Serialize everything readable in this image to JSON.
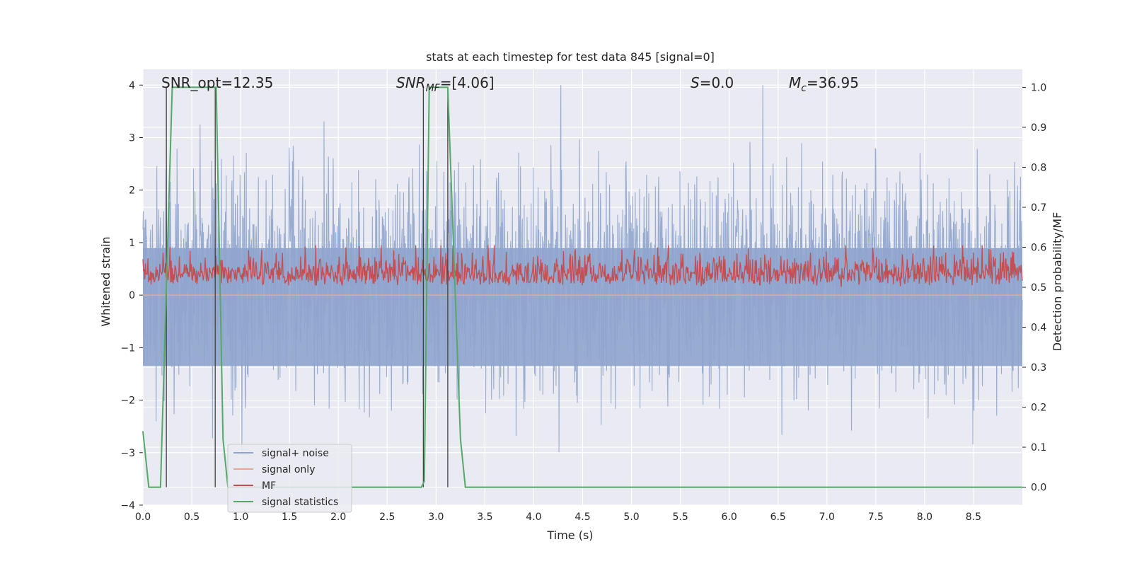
{
  "chart_data": {
    "type": "line",
    "title": "stats at each timestep for test data 845 [signal=0]",
    "xlabel": "Time (s)",
    "ylabel": "Whitened strain",
    "y2label": "Detection probability/MF",
    "xlim": [
      0.0,
      9.0
    ],
    "ylim": [
      -4.0,
      4.3
    ],
    "y2lim": [
      -0.045,
      1.045
    ],
    "x_ticks": [
      "0.0",
      "0.5",
      "1.0",
      "1.5",
      "2.0",
      "2.5",
      "3.0",
      "3.5",
      "4.0",
      "4.5",
      "5.0",
      "5.5",
      "6.0",
      "6.5",
      "7.0",
      "7.5",
      "8.0",
      "8.5"
    ],
    "y_ticks": [
      "4",
      "3",
      "2",
      "1",
      "0",
      "−1",
      "−2",
      "−3",
      "−4"
    ],
    "y2_ticks": [
      "1.0",
      "0.9",
      "0.8",
      "0.7",
      "0.6",
      "0.5",
      "0.4",
      "0.3",
      "0.2",
      "0.1",
      "0.0"
    ],
    "grid": true,
    "legend_position": "lower-left",
    "annotations": {
      "snr_opt": "SNR_opt=12.35",
      "snr_mf": "SNR",
      "snr_mf_sub": "MF",
      "snr_mf_val": "=[4.06]",
      "s_name": "S",
      "s_val": "=0.0",
      "mc_name": "M",
      "mc_sub": "c",
      "mc_val": "=36.95"
    },
    "series": [
      {
        "name": "signal+ noise",
        "color": "#8fa5cd",
        "description": "whitened strain noise",
        "amplitude_range": [
          -3.8,
          4.0
        ]
      },
      {
        "name": "signal only",
        "color": "#e8a88c",
        "values": [
          0,
          0
        ]
      },
      {
        "name": "MF",
        "color": "#c44e52",
        "axis": "right",
        "range": [
          0.5,
          0.6
        ]
      },
      {
        "name": "signal statistics",
        "color": "#55a868",
        "axis": "right",
        "x": [
          0.0,
          0.06,
          0.18,
          0.3,
          0.75,
          0.82,
          0.87,
          2.85,
          2.88,
          2.93,
          3.12,
          3.25,
          3.3,
          9.0
        ],
        "values": [
          0.14,
          0.0,
          0.0,
          1.0,
          1.0,
          0.12,
          0.0,
          0.0,
          0.015,
          1.0,
          1.0,
          0.12,
          0.0,
          0.0
        ]
      }
    ],
    "vertical_markers_x": [
      0.24,
      0.74,
      2.87,
      3.12
    ]
  },
  "colors": {
    "axes_bg": "#eaeaf2",
    "grid": "#ffffff",
    "noise": "#8fa5cd",
    "signal": "#e8a88c",
    "mf": "#c44e52",
    "stats": "#55a868",
    "marker": "#404040"
  }
}
